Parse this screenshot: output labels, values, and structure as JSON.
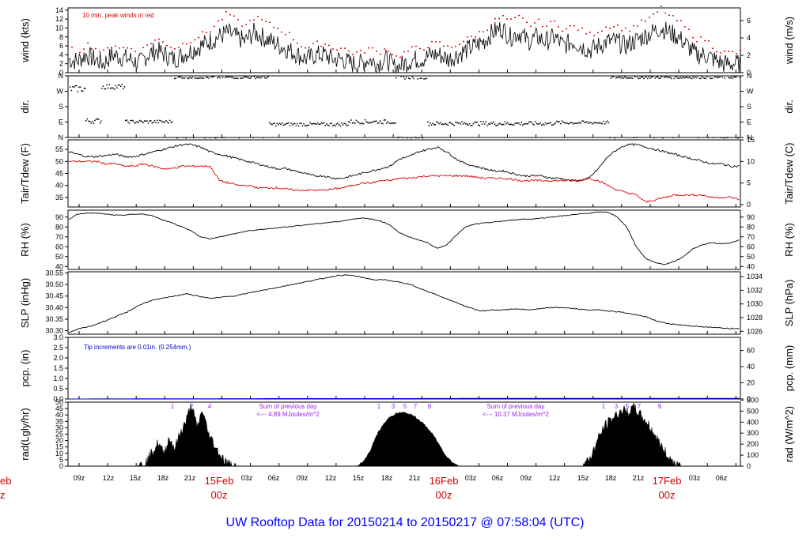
{
  "page_title": "UW Rooftop Data for 20150214  to  20150217 @ 07:58:04  (UTC)",
  "colors": {
    "axis": "#000000",
    "trace": "#000000",
    "peak": "#e00000",
    "dew": "#e00000",
    "precip": "#0000cc",
    "note_precip": "#0000cc",
    "note_rad": "#a020f0",
    "title": "#0000ff",
    "date": "#d00000"
  },
  "x_axis": {
    "tick_labels": [
      "09z",
      "12z",
      "15z",
      "18z",
      "21z",
      "03z",
      "06z",
      "09z",
      "12z",
      "15z",
      "18z",
      "21z",
      "03z",
      "06z",
      "09z",
      "12z",
      "15z",
      "18z",
      "21z",
      "03z",
      "06z"
    ],
    "day_labels": [
      {
        "date": "15Feb",
        "hour": "00z"
      },
      {
        "date": "16Feb",
        "hour": "00z"
      },
      {
        "date": "17Feb",
        "hour": "00z"
      }
    ],
    "clipped_left_date": "eb",
    "clipped_left_hour": "z"
  },
  "chart_data": [
    {
      "type": "line",
      "ylabel_left": "wind (kts)",
      "ylabel_right": "wind (m/s)",
      "yticks_left": [
        "0",
        "2",
        "4",
        "6",
        "8",
        "10",
        "12",
        "14"
      ],
      "yticks_right": [
        "0",
        "2",
        "4",
        "6"
      ],
      "ylim": [
        0,
        14.5
      ],
      "annotation": "10 min. peak winds in red",
      "series": [
        {
          "values": [
            3,
            2.5,
            4,
            3,
            2,
            4,
            3.5,
            3,
            2,
            4,
            5,
            4,
            3,
            4,
            5,
            6,
            7,
            8,
            9,
            8,
            7,
            9,
            8,
            7,
            6,
            5,
            4,
            3,
            4,
            4,
            3,
            3,
            2,
            2,
            3,
            2,
            3,
            1,
            2,
            3,
            3,
            4,
            4,
            3,
            4,
            5,
            6,
            7,
            9,
            10,
            8,
            9,
            7,
            8,
            7,
            8,
            6,
            7,
            6,
            5,
            6,
            7,
            7,
            6,
            7,
            8,
            9,
            10,
            9,
            8,
            6,
            4,
            4,
            3,
            2,
            2,
            2
          ]
        },
        {
          "name_hidden": "peak",
          "values": [
            5,
            4,
            6,
            5,
            4,
            6,
            5,
            5,
            4,
            6,
            7,
            6,
            5,
            6,
            7,
            8,
            9,
            11,
            13,
            11,
            10,
            12,
            11,
            10,
            9,
            8,
            6,
            5,
            6,
            6,
            5,
            5,
            4,
            4,
            5,
            4,
            5,
            3,
            4,
            5,
            5,
            6,
            6,
            5,
            6,
            7,
            8,
            9,
            11,
            12,
            11,
            12,
            10,
            11,
            10,
            11,
            9,
            10,
            9,
            8,
            9,
            10,
            10,
            9,
            10,
            11,
            12,
            14,
            12,
            11,
            9,
            7,
            7,
            5,
            4,
            4,
            4
          ]
        }
      ]
    },
    {
      "type": "scatter",
      "ylabel_left": "dir.",
      "ylabel_right": "dir.",
      "yticks_left": [
        "N",
        "E",
        "S",
        "W",
        "N"
      ],
      "yticks_right": [
        "N",
        "E",
        "S",
        "W",
        "N"
      ],
      "ylim": [
        0,
        360
      ]
    },
    {
      "type": "line",
      "ylabel_left": "Tair/Tdew (F)",
      "ylabel_right": "Tair/Tdew (C)",
      "yticks_left": [
        "35",
        "40",
        "45",
        "50",
        "55"
      ],
      "yticks_right": [
        "0",
        "5",
        "10",
        "15"
      ],
      "ylim": [
        31,
        59
      ],
      "series": [
        {
          "values": [
            54,
            53,
            52,
            52,
            52.5,
            53,
            52,
            52,
            53,
            54,
            55,
            56,
            57,
            57,
            56,
            54,
            53,
            52,
            51,
            50,
            49,
            48,
            47,
            47,
            46,
            45,
            44,
            44,
            43,
            43,
            44,
            45,
            46,
            47,
            48,
            51,
            52,
            54,
            55,
            56,
            54,
            51,
            49,
            48,
            47,
            46,
            46,
            45,
            44,
            44,
            44,
            43,
            43,
            42,
            42,
            43,
            47,
            52,
            55,
            57,
            57,
            56,
            55,
            54,
            53,
            52,
            51,
            50,
            49,
            49,
            48,
            48
          ]
        },
        {
          "values": [
            50,
            50,
            50,
            50,
            49,
            49,
            48,
            48,
            49,
            48,
            47,
            47,
            48,
            48,
            48,
            48,
            42,
            41,
            40,
            40,
            39,
            39,
            39,
            38.5,
            38,
            38,
            38,
            38,
            38.5,
            39,
            40,
            41,
            41,
            42,
            42,
            43,
            43,
            43.5,
            44,
            44,
            44,
            44,
            44,
            43.5,
            43,
            43,
            43,
            42.5,
            42,
            42,
            42,
            42,
            42,
            42,
            42,
            43,
            42,
            40,
            38,
            37,
            36,
            33,
            34,
            35,
            36,
            36,
            36,
            36,
            35,
            35,
            35,
            34
          ]
        }
      ]
    },
    {
      "type": "line",
      "ylabel_left": "RH (%)",
      "ylabel_right": "RH (%)",
      "yticks_left": [
        "40",
        "50",
        "60",
        "70",
        "80",
        "90"
      ],
      "yticks_right": [
        "40",
        "50",
        "60",
        "70",
        "80",
        "90"
      ],
      "ylim": [
        37,
        97
      ],
      "series": [
        {
          "values": [
            87,
            93,
            94,
            94,
            93,
            92,
            92,
            93,
            93,
            91,
            87,
            84,
            80,
            76,
            70,
            68,
            70,
            72,
            74,
            76,
            77,
            78,
            79,
            80,
            81,
            82,
            83,
            84,
            85,
            86,
            88,
            89,
            88,
            86,
            82,
            74,
            70,
            67,
            64,
            58,
            62,
            72,
            80,
            83,
            84,
            85,
            86,
            87,
            88,
            88,
            89,
            90,
            91,
            92,
            93,
            94,
            95,
            95,
            90,
            80,
            60,
            48,
            44,
            42,
            45,
            50,
            58,
            62,
            64,
            63,
            64,
            67
          ]
        }
      ]
    },
    {
      "type": "line",
      "ylabel_left": "SLP (inHg)",
      "ylabel_right": "SLP (hPa)",
      "yticks_left": [
        "30.30",
        "30.35",
        "30.40",
        "30.45",
        "30.50",
        "30.55"
      ],
      "yticks_right": [
        "1026",
        "1028",
        "1030",
        "1032",
        "1034"
      ],
      "ylim": [
        30.285,
        30.555
      ],
      "series": [
        {
          "values": [
            30.29,
            30.31,
            30.32,
            30.34,
            30.36,
            30.38,
            30.41,
            30.43,
            30.44,
            30.45,
            30.46,
            30.45,
            30.44,
            30.445,
            30.45,
            30.46,
            30.47,
            30.48,
            30.49,
            30.5,
            30.51,
            30.52,
            30.53,
            30.54,
            30.54,
            30.53,
            30.52,
            30.52,
            30.51,
            30.5,
            30.48,
            30.46,
            30.44,
            30.42,
            30.4,
            30.385,
            30.39,
            30.39,
            30.395,
            30.39,
            30.395,
            30.4,
            30.4,
            30.395,
            30.39,
            30.39,
            30.385,
            30.38,
            30.37,
            30.36,
            30.34,
            30.33,
            30.325,
            30.32,
            30.315,
            30.315,
            30.31,
            30.31
          ]
        }
      ]
    },
    {
      "type": "line",
      "ylabel_left": "pcp. (in)",
      "ylabel_right": "pcp. (mm)",
      "yticks_left": [
        "0.0",
        "0.5",
        "1.0",
        "1.5",
        "2.0",
        "2.5",
        "3.0"
      ],
      "yticks_right": [
        "0",
        "20",
        "40",
        "60"
      ],
      "ylim": [
        0,
        3.0
      ],
      "annotation": "Tip increments are 0.01in. (0.254mm.)",
      "series": [
        {
          "values": [
            0.0,
            0.01,
            0.02,
            0.02,
            0.03,
            0.03,
            0.03
          ]
        }
      ]
    },
    {
      "type": "area",
      "ylabel_left": "rad(Lgly/hr)",
      "ylabel_right": "rad (W/m^2)",
      "yticks_left": [
        "0",
        "5",
        "10",
        "15",
        "20",
        "25",
        "30",
        "35",
        "40",
        "45",
        "50"
      ],
      "yticks_right": [
        "0",
        "100",
        "200",
        "300",
        "400",
        "500",
        "600"
      ],
      "ylim": [
        0,
        50
      ],
      "hour_marks": [
        "1",
        "2",
        "4",
        "1",
        "3",
        "5",
        "7",
        "9",
        "1",
        "3",
        "5",
        "7",
        "9"
      ],
      "notes": [
        {
          "line1": "Sum of previous day",
          "line2": "<--- 4.89 MJoules/m^2"
        },
        {
          "line1": "Sum of previous day",
          "line2": "<--- 10.37 MJoules/m^2"
        }
      ],
      "days": [
        {
          "values": [
            0,
            1,
            4,
            12,
            18,
            10,
            22,
            14,
            26,
            35,
            48,
            30,
            44,
            26,
            18,
            10,
            4,
            1,
            0
          ]
        },
        {
          "values": [
            0,
            4,
            12,
            24,
            32,
            38,
            41,
            42,
            41,
            39,
            35,
            30,
            24,
            16,
            8,
            3,
            0
          ]
        },
        {
          "values": [
            0,
            3,
            10,
            22,
            31,
            36,
            40,
            44,
            42,
            46,
            40,
            35,
            28,
            20,
            12,
            6,
            2,
            0
          ]
        }
      ]
    }
  ]
}
